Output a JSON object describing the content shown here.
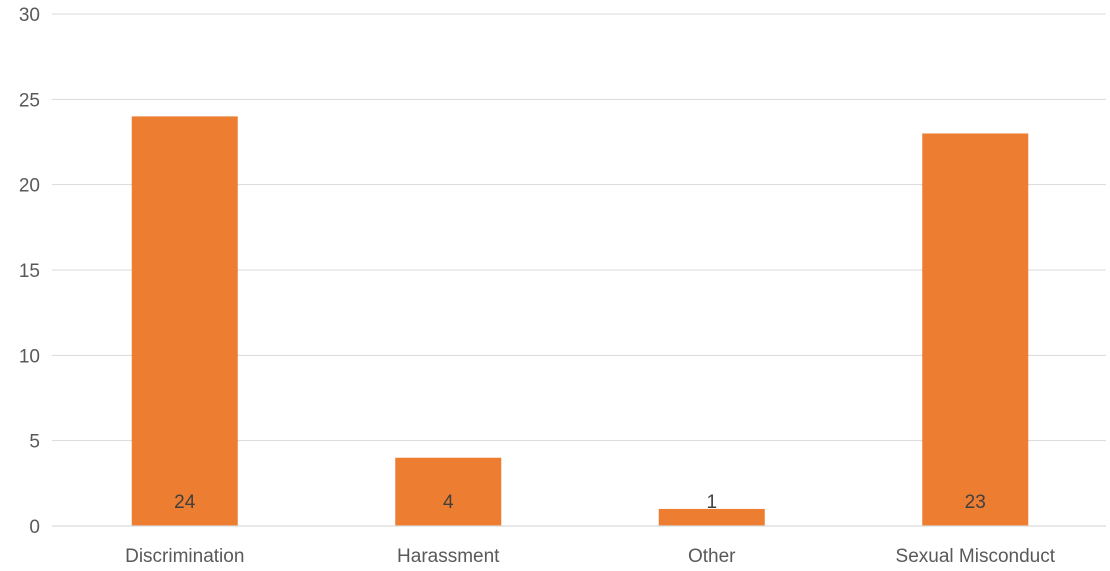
{
  "chart_data": {
    "type": "bar",
    "categories": [
      "Discrimination",
      "Harassment",
      "Other",
      "Sexual Misconduct"
    ],
    "values": [
      24,
      4,
      1,
      23
    ],
    "data_labels": [
      "24",
      "4",
      "1",
      "23"
    ],
    "title": "",
    "xlabel": "",
    "ylabel": "",
    "ylim": [
      0,
      30
    ],
    "y_ticks": [
      0,
      5,
      10,
      15,
      20,
      25,
      30
    ],
    "y_tick_labels": [
      "0",
      "5",
      "10",
      "15",
      "20",
      "25",
      "30"
    ],
    "grid": true,
    "legend": "none",
    "bar_color": "#ED7D31",
    "grid_color": "#D9D9D9",
    "label_color": "#595959"
  }
}
